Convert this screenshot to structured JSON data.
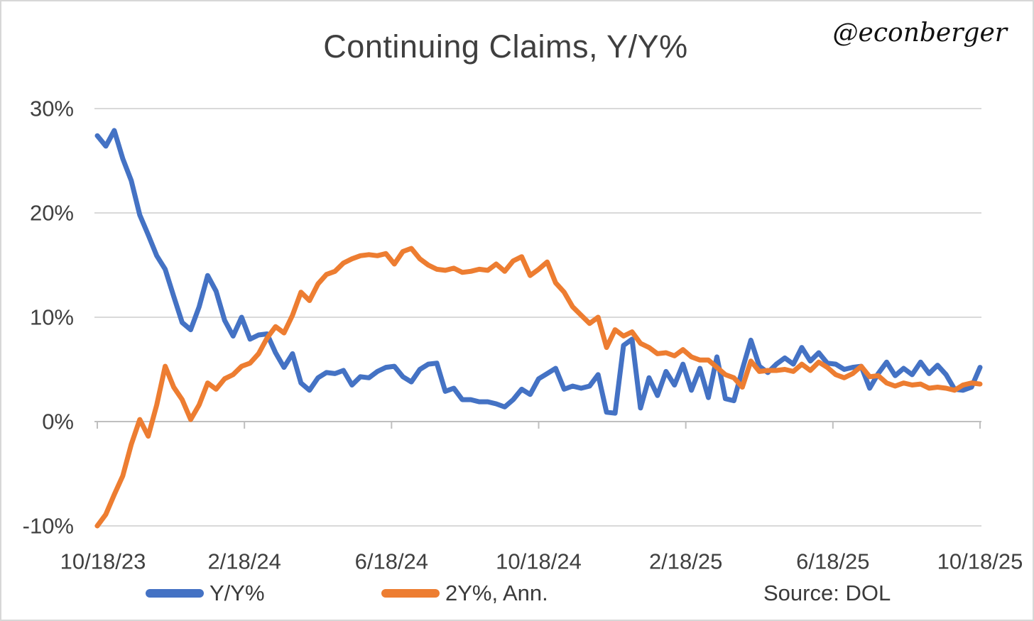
{
  "header": {
    "title": "Continuing Claims, Y/Y%",
    "watermark": "@econberger"
  },
  "footer": {
    "source": "Source: DOL"
  },
  "chart_data": {
    "type": "line",
    "title": "Continuing Claims, Y/Y%",
    "x_frequency": "weekly",
    "x_tick_labels": [
      "10/18/23",
      "2/18/24",
      "6/18/24",
      "10/18/24",
      "2/18/25",
      "6/18/25",
      "10/18/25"
    ],
    "y_tick_labels": [
      "30%",
      "20%",
      "10%",
      "0%",
      "-10%"
    ],
    "y_ticks": [
      30,
      20,
      10,
      0,
      -10
    ],
    "ylim": [
      -10,
      30
    ],
    "grid": "horizontal-only",
    "x_axis_position": "zero-line",
    "legend_position": "bottom",
    "colors": {
      "grid": "#d9d9d9",
      "axis": "#bfbfbf",
      "tick_text": "#404040"
    },
    "series": [
      {
        "name": "Y/Y%",
        "color": "#4472C4",
        "values": [
          27.4,
          26.4,
          27.9,
          25.2,
          23.1,
          19.8,
          17.9,
          15.9,
          14.6,
          12.0,
          9.5,
          8.8,
          11.0,
          14.0,
          12.5,
          9.7,
          8.2,
          10.0,
          7.9,
          8.3,
          8.4,
          6.6,
          5.2,
          6.5,
          3.7,
          3.0,
          4.2,
          4.7,
          4.6,
          4.9,
          3.5,
          4.3,
          4.2,
          4.8,
          5.2,
          5.3,
          4.3,
          3.8,
          5.0,
          5.5,
          5.6,
          2.9,
          3.2,
          2.1,
          2.1,
          1.9,
          1.9,
          1.7,
          1.4,
          2.1,
          3.1,
          2.6,
          4.1,
          4.6,
          5.1,
          3.1,
          3.4,
          3.2,
          3.4,
          4.5,
          0.9,
          0.8,
          7.3,
          7.9,
          1.3,
          4.2,
          2.5,
          4.8,
          3.5,
          5.5,
          3.0,
          5.1,
          2.3,
          6.2,
          2.2,
          2.0,
          5.0,
          7.8,
          5.3,
          4.7,
          5.5,
          6.1,
          5.5,
          7.1,
          5.8,
          6.6,
          5.6,
          5.5,
          5.0,
          5.2,
          5.3,
          3.2,
          4.6,
          5.7,
          4.4,
          5.1,
          4.5,
          5.7,
          4.6,
          5.4,
          4.5,
          3.1,
          3.0,
          3.3,
          5.2
        ]
      },
      {
        "name": "2Y%, Ann.",
        "color": "#ED7D31",
        "values": [
          -10.0,
          -8.9,
          -7.0,
          -5.2,
          -2.2,
          0.2,
          -1.4,
          1.6,
          5.3,
          3.3,
          2.1,
          0.2,
          1.6,
          3.7,
          3.1,
          4.1,
          4.5,
          5.3,
          5.6,
          6.5,
          8.0,
          9.1,
          8.5,
          10.2,
          12.4,
          11.6,
          13.2,
          14.1,
          14.4,
          15.2,
          15.6,
          15.9,
          16.0,
          15.9,
          16.1,
          15.1,
          16.3,
          16.6,
          15.6,
          15.0,
          14.6,
          14.5,
          14.7,
          14.3,
          14.4,
          14.6,
          14.5,
          15.1,
          14.4,
          15.4,
          15.8,
          14.0,
          14.6,
          15.3,
          13.3,
          12.4,
          11.0,
          10.2,
          9.4,
          10.0,
          7.1,
          8.8,
          8.2,
          8.6,
          7.5,
          7.1,
          6.5,
          6.6,
          6.3,
          6.9,
          6.2,
          5.9,
          5.9,
          5.2,
          4.5,
          4.2,
          3.3,
          5.8,
          4.8,
          4.9,
          4.9,
          5.0,
          4.8,
          5.5,
          4.9,
          5.7,
          5.2,
          4.5,
          4.2,
          4.6,
          5.3,
          4.3,
          4.4,
          3.7,
          3.4,
          3.7,
          3.5,
          3.6,
          3.2,
          3.3,
          3.2,
          3.0,
          3.5,
          3.7,
          3.6
        ]
      }
    ],
    "source": "Source: DOL"
  }
}
